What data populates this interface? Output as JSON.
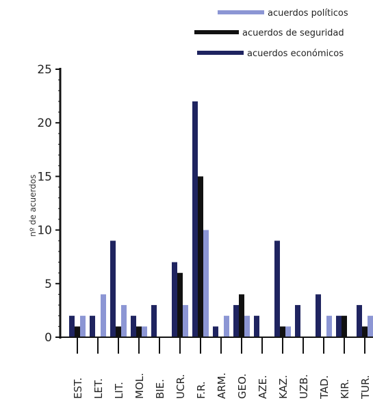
{
  "chart_data": {
    "type": "bar",
    "ylabel": "nº de acuerdos",
    "ylim": [
      0,
      25
    ],
    "yticks": [
      0,
      5,
      10,
      15,
      20,
      25
    ],
    "legend_position": "top-right",
    "categories": [
      "EST.",
      "LET.",
      "LIT.",
      "MOL.",
      "BIE.",
      "UCR.",
      "F.R.",
      "ARM.",
      "GEO.",
      "AZE.",
      "KAZ.",
      "UZB.",
      "TAD.",
      "KIR.",
      "TUR."
    ],
    "series": [
      {
        "name": "acuerdos económicos",
        "color": "#1f2460",
        "values": [
          2,
          2,
          9,
          2,
          3,
          7,
          22,
          1,
          3,
          2,
          9,
          3,
          4,
          2,
          3
        ]
      },
      {
        "name": "acuerdos de seguridad",
        "color": "#111111",
        "values": [
          1,
          0,
          1,
          1,
          0,
          6,
          15,
          0,
          4,
          0,
          1,
          0,
          0,
          2,
          1
        ]
      },
      {
        "name": "acuerdos políticos",
        "color": "#8c96d4",
        "values": [
          2,
          4,
          3,
          1,
          0,
          3,
          10,
          2,
          2,
          0,
          1,
          0,
          2,
          0,
          2
        ]
      }
    ],
    "legend_order": [
      "acuerdos políticos",
      "acuerdos de seguridad",
      "acuerdos económicos"
    ]
  }
}
